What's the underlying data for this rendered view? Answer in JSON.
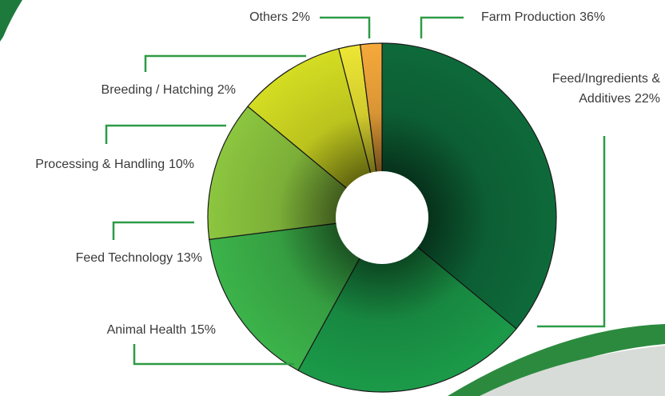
{
  "chart_data": {
    "type": "donut",
    "categories": [
      "Farm Production",
      "Feed/Ingredients & Additives",
      "Animal Health",
      "Feed Technology",
      "Processing & Handling",
      "Breeding / Hatching",
      "Others"
    ],
    "values": [
      36,
      22,
      15,
      13,
      10,
      2,
      2
    ],
    "value_labels": [
      "36%",
      "22%",
      "15%",
      "13%",
      "10%",
      "2%",
      "2%"
    ],
    "colors": [
      "#0e6a3a",
      "#1b9a49",
      "#3cb34a",
      "#8cc63f",
      "#d4dd22",
      "#ede634",
      "#f6a93b"
    ]
  }
}
